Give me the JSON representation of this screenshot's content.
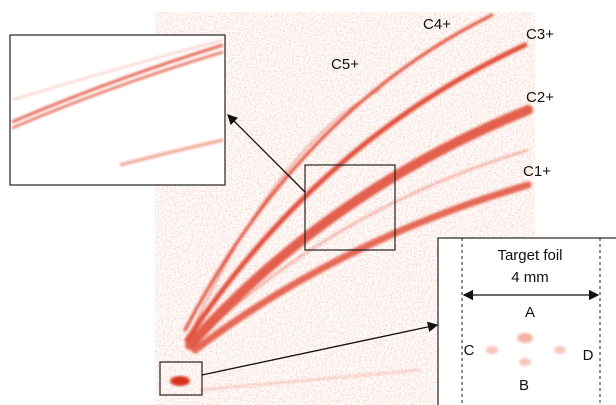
{
  "ion_labels": [
    "C5+",
    "C4+",
    "C3+",
    "C2+",
    "C1+"
  ],
  "inset": {
    "title": "Target foil",
    "width": "4 mm",
    "spots": [
      "A",
      "B",
      "C",
      "D"
    ]
  }
}
